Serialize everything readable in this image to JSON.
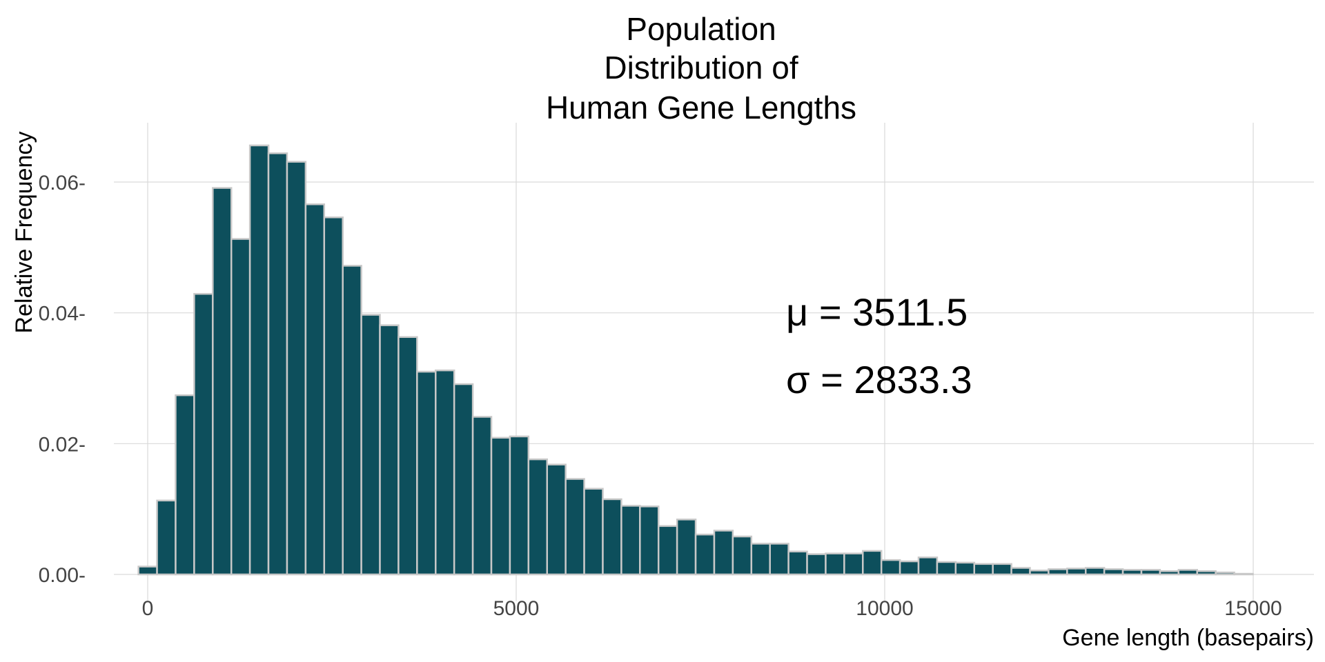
{
  "chart_data": {
    "type": "bar",
    "title": [
      "Population",
      "Distribution of",
      "Human Gene Lengths"
    ],
    "xlabel": "Gene length (basepairs)",
    "ylabel": "Relative Frequency",
    "xlim": [
      -1500,
      16500
    ],
    "ylim": [
      0,
      0.069
    ],
    "xticks": [
      0,
      5000,
      10000,
      15000
    ],
    "xtick_labels": [
      "0",
      "5000",
      "10000",
      "15000"
    ],
    "yticks": [
      0,
      0.02,
      0.04,
      0.06
    ],
    "ytick_labels": [
      "0.00",
      "0.02",
      "0.04",
      "0.06"
    ],
    "grid": true,
    "bin_start": -125,
    "bin_width": 252,
    "values": [
      0.0012,
      0.0113,
      0.0274,
      0.0429,
      0.0591,
      0.0513,
      0.0656,
      0.0644,
      0.0631,
      0.0566,
      0.0546,
      0.0472,
      0.0397,
      0.0381,
      0.0363,
      0.031,
      0.0312,
      0.0291,
      0.0241,
      0.0209,
      0.0211,
      0.0176,
      0.0168,
      0.0146,
      0.0131,
      0.0115,
      0.0105,
      0.0104,
      0.0074,
      0.0084,
      0.0061,
      0.0067,
      0.0058,
      0.0047,
      0.0047,
      0.0035,
      0.0031,
      0.0032,
      0.0032,
      0.0036,
      0.0022,
      0.002,
      0.0026,
      0.0019,
      0.0018,
      0.0016,
      0.0016,
      0.001,
      0.0006,
      0.0008,
      0.0009,
      0.001,
      0.0008,
      0.0007,
      0.0007,
      0.0005,
      0.0007,
      0.0005,
      0.0003,
      0.0001
    ],
    "annotations": {
      "mean_label": "μ = 3511.5",
      "sd_label": "σ = 2833.3"
    },
    "colors": {
      "fill": "#0d4f5c",
      "edge": "#c8c8c8"
    }
  }
}
